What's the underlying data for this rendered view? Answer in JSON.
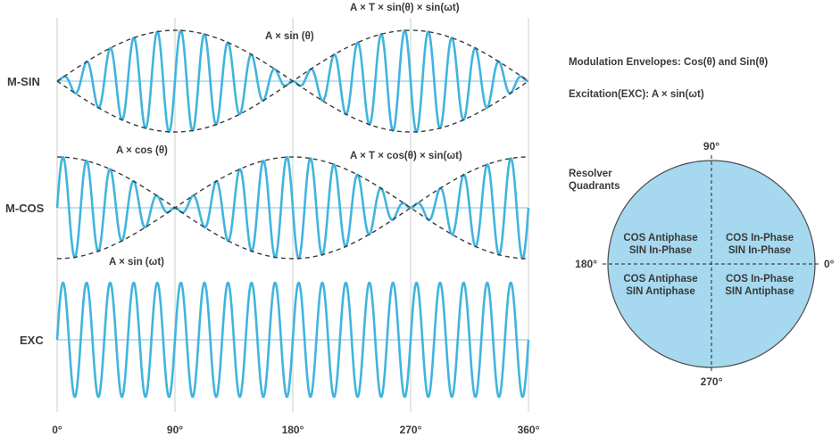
{
  "rows": {
    "msin": "M-SIN",
    "mcos": "M-COS",
    "exc": "EXC"
  },
  "annotations": {
    "msin_product": "A × T × sin(θ) × sin(ωt)",
    "msin_envelope": "A × sin (θ)",
    "mcos_envelope": "A × cos (θ)",
    "mcos_product": "A × T × cos(θ) × sin(ωt)",
    "exc_signal": "A × sin (ωt)"
  },
  "x_ticks": [
    "0°",
    "90°",
    "180°",
    "270°",
    "360°"
  ],
  "legend": {
    "envelopes": "Modulation Envelopes: Cos(θ) and Sin(θ)",
    "excitation": "Excitation(EXC): A × sin(ωt)"
  },
  "quadrants": {
    "title_line1": "Resolver",
    "title_line2": "Quadrants",
    "deg_90": "90°",
    "deg_180": "180°",
    "deg_0": "0°",
    "deg_270": "270°",
    "q1_line1": "COS In-Phase",
    "q1_line2": "SIN In-Phase",
    "q2_line1": "COS Antiphase",
    "q2_line2": "SIN In-Phase",
    "q3_line1": "COS Antiphase",
    "q3_line2": "SIN Antiphase",
    "q4_line1": "COS In-Phase",
    "q4_line2": "SIN Antiphase"
  },
  "colors": {
    "wave": "#41b4de",
    "circle_fill": "#a6d9ef",
    "envelope": "#3b3b3b",
    "text": "#3a3a3a"
  },
  "chart_data": {
    "type": "line",
    "x_range_degrees": [
      0,
      360
    ],
    "carrier_cycles": 20,
    "series": [
      {
        "name": "M-SIN",
        "formula": "sin(θ) × sin(ωt)"
      },
      {
        "name": "M-COS",
        "formula": "cos(θ) × sin(ωt)"
      },
      {
        "name": "EXC",
        "formula": "sin(ωt)"
      }
    ]
  }
}
